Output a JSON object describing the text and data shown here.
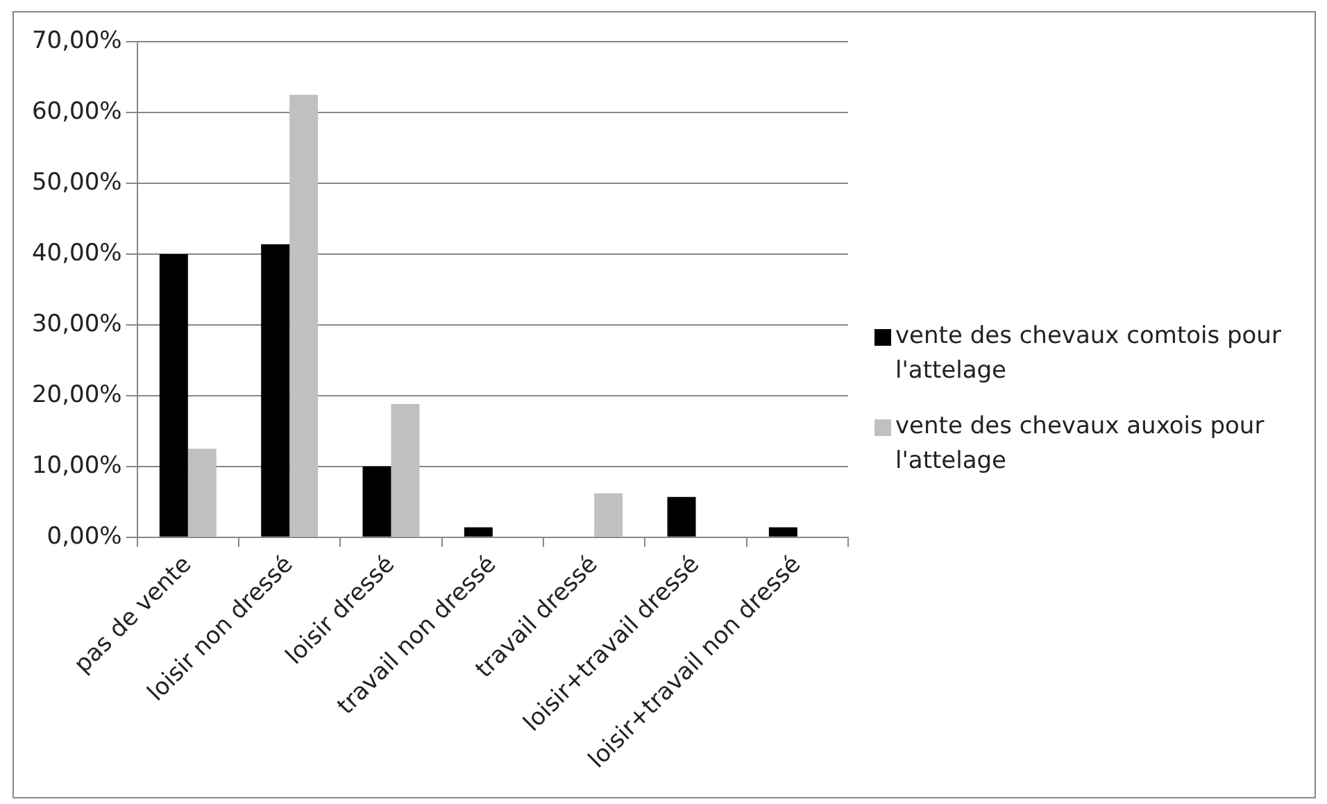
{
  "chart_data": {
    "type": "bar",
    "categories": [
      "pas de vente",
      "loisir non dressé",
      "loisir dressé",
      "travail non dressé",
      "travail dressé",
      "loisir+travail dressé",
      "loisir+travail non dressé"
    ],
    "series": [
      {
        "name": "vente des chevaux comtois pour l'attelage",
        "color": "#000000",
        "values": [
          40,
          41.4,
          10,
          1.4,
          0,
          5.7,
          1.4
        ]
      },
      {
        "name": "vente des chevaux auxois pour l'attelage",
        "color": "#c0c0c0",
        "values": [
          12.5,
          62.5,
          18.8,
          0,
          6.2,
          0,
          0
        ]
      }
    ],
    "ylim": [
      0,
      70
    ],
    "yticks": [
      {
        "value": 0,
        "label": "0,00%"
      },
      {
        "value": 10,
        "label": "10,00%"
      },
      {
        "value": 20,
        "label": "20,00%"
      },
      {
        "value": 30,
        "label": "30,00%"
      },
      {
        "value": 40,
        "label": "40,00%"
      },
      {
        "value": 50,
        "label": "50,00%"
      },
      {
        "value": 60,
        "label": "60,00%"
      },
      {
        "value": 70,
        "label": "70,00%"
      }
    ],
    "grid": "y",
    "legend": "right"
  }
}
